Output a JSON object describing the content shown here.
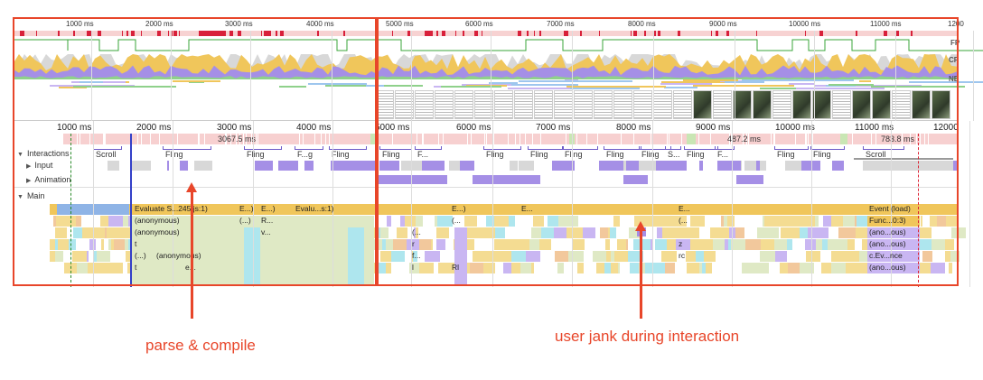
{
  "overview": {
    "ticks": [
      "1000 ms",
      "2000 ms",
      "3000 ms",
      "4000 ms",
      "5000 ms",
      "6000 ms",
      "7000 ms",
      "8000 ms",
      "9000 ms",
      "10000 ms",
      "11000 ms",
      "1200"
    ],
    "row_labels": [
      "FP",
      "CP",
      "NE"
    ]
  },
  "timeline": {
    "ticks": [
      "1000 ms",
      "2000 ms",
      "3000 ms",
      "4000 ms",
      "5000 ms",
      "6000 ms",
      "7000 ms",
      "8000 ms",
      "9000 ms",
      "10000 ms",
      "11000 ms",
      "12000"
    ],
    "frame_labels": [
      "3067.5 ms",
      "487.2 ms",
      "783.8 ms"
    ]
  },
  "tracks": {
    "interactions": "Interactions",
    "input": "Input",
    "animation": "Animation",
    "main": "Main"
  },
  "interaction_labels": [
    "Scroll",
    "Fling",
    "Fling",
    "F...g",
    "Fling",
    "Fling",
    "F...",
    "Fling",
    "Fling",
    "Fling",
    "Fling",
    "Fling",
    "S...",
    "Fling",
    "F...",
    "Fling",
    "Fling",
    "Scroll"
  ],
  "flame": {
    "col1": [
      "Evaluate S...245.js:1)",
      "(anonymous)",
      "(anonymous)",
      "t",
      "(...)",
      "t"
    ],
    "col1b": [
      "(anonymous)"
    ],
    "col1c": [
      "e..."
    ],
    "col2": [
      "E...)",
      "(...)"
    ],
    "col3": [
      "E...)",
      "R...",
      "v..."
    ],
    "col4": [
      "Evalu...s:1)"
    ],
    "col5": [
      "(...",
      "r",
      "f...",
      "l"
    ],
    "col6": [
      "E...)",
      "(...",
      "Rl"
    ],
    "col7": [
      "E..."
    ],
    "col8": [
      "E...",
      "(...",
      "z",
      "rc"
    ],
    "col9": [
      "Event (load)",
      "Func...0:3)",
      "(ano...ous)",
      "(ano...ous)",
      "c.Ev...nce",
      "(ano...ous)"
    ]
  },
  "annotations": {
    "left_caption": "parse & compile",
    "right_caption": "user jank during interaction"
  },
  "colors": {
    "annotation": "#e8462a",
    "scripting": "#f0c65b",
    "rendering": "#a58fe6",
    "painting": "#8fd18b",
    "idle_green": "#dfe9c5",
    "frame_red": "#f5c7c7",
    "cyan": "#aee6ee"
  }
}
